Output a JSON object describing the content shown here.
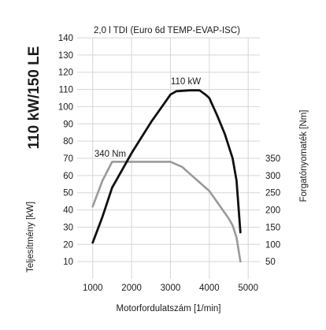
{
  "chart_data": {
    "type": "line",
    "title": "2,0 l TDI (Euro 6d TEMP-EVAP-ISC)",
    "side_label": "110 kW/150 LE",
    "xlabel": "Motorfordulatszám [1/min]",
    "ylabel_left": "Teljesítmény [kW]",
    "ylabel_right": "Forgatónyomaték [Nm]",
    "x_ticks": [
      1000,
      2000,
      3000,
      4000,
      5000
    ],
    "x_range": [
      600,
      5300
    ],
    "y_left_ticks": [
      10,
      20,
      30,
      40,
      50,
      60,
      70,
      80,
      90,
      100,
      110,
      120,
      130,
      140
    ],
    "y_left_range": [
      0,
      140
    ],
    "y_right_ticks": [
      50,
      100,
      150,
      200,
      250,
      300,
      350
    ],
    "y_right_range": [
      0,
      700
    ],
    "grid": true,
    "series": [
      {
        "name": "110 kW",
        "axis": "left",
        "color": "#111111",
        "points": [
          [
            1000,
            21
          ],
          [
            1250,
            36
          ],
          [
            1500,
            53
          ],
          [
            1750,
            63
          ],
          [
            2000,
            73
          ],
          [
            2500,
            91
          ],
          [
            3000,
            107
          ],
          [
            3150,
            109
          ],
          [
            3500,
            109.5
          ],
          [
            3750,
            109.5
          ],
          [
            3900,
            107
          ],
          [
            4000,
            105
          ],
          [
            4200,
            95
          ],
          [
            4400,
            84
          ],
          [
            4600,
            70
          ],
          [
            4700,
            57
          ],
          [
            4800,
            27
          ]
        ]
      },
      {
        "name": "340 Nm",
        "axis": "right",
        "color": "#9a9a9a",
        "points": [
          [
            1000,
            210
          ],
          [
            1250,
            285
          ],
          [
            1500,
            340
          ],
          [
            2000,
            340
          ],
          [
            2500,
            340
          ],
          [
            3000,
            340
          ],
          [
            3300,
            325
          ],
          [
            3500,
            305
          ],
          [
            3750,
            280
          ],
          [
            4000,
            255
          ],
          [
            4250,
            215
          ],
          [
            4500,
            175
          ],
          [
            4600,
            155
          ],
          [
            4700,
            120
          ],
          [
            4800,
            50
          ]
        ]
      }
    ]
  }
}
